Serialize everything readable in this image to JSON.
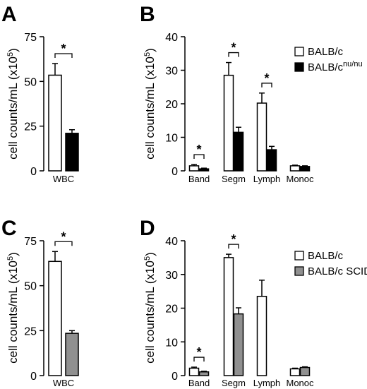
{
  "chart_data": [
    {
      "panel": "A",
      "type": "bar",
      "ylabel": "cell counts/mL (x10",
      "ylabel_sup": "5",
      "ylabel_end": ")",
      "ylim": [
        0,
        75
      ],
      "yticks": [
        "0",
        "25",
        "50",
        "75"
      ],
      "categories": [
        "WBC"
      ],
      "series": [
        {
          "values": [
            53.5
          ],
          "errors": [
            6.5
          ],
          "color": "#ffffff"
        },
        {
          "values": [
            21
          ],
          "errors": [
            2
          ],
          "color": "#000000"
        }
      ],
      "significance": [
        {
          "label": "*",
          "category": 0
        }
      ]
    },
    {
      "panel": "B",
      "type": "bar",
      "ylabel": "cell counts/mL (x10",
      "ylabel_sup": "5",
      "ylabel_end": ")",
      "ylim": [
        0,
        40
      ],
      "yticks": [
        "0",
        "10",
        "20",
        "30",
        "40"
      ],
      "categories": [
        "Band",
        "Segm",
        "Lymph",
        "Monoc"
      ],
      "series": [
        {
          "name": "BALB/c",
          "name_sup": "",
          "values": [
            1.5,
            28.5,
            20.2,
            1.5
          ],
          "errors": [
            0.4,
            3.8,
            3,
            0.2
          ],
          "color": "#ffffff"
        },
        {
          "name": "BALB/c",
          "name_sup": "nu/nu",
          "values": [
            0.6,
            11.5,
            6.3,
            1.3
          ],
          "errors": [
            0.2,
            1.5,
            1,
            0.2
          ],
          "color": "#000000"
        }
      ],
      "significance": [
        {
          "label": "*",
          "category": 0
        },
        {
          "label": "*",
          "category": 1
        },
        {
          "label": "*",
          "category": 2
        }
      ]
    },
    {
      "panel": "C",
      "type": "bar",
      "ylabel": "cell counts/mL (x10",
      "ylabel_sup": "5",
      "ylabel_end": ")",
      "ylim": [
        0,
        75
      ],
      "yticks": [
        "0",
        "25",
        "50",
        "75"
      ],
      "categories": [
        "WBC"
      ],
      "series": [
        {
          "values": [
            63.5
          ],
          "errors": [
            5.5
          ],
          "color": "#ffffff"
        },
        {
          "values": [
            23.5
          ],
          "errors": [
            1.5
          ],
          "color": "#909090"
        }
      ],
      "significance": [
        {
          "label": "*",
          "category": 0
        }
      ]
    },
    {
      "panel": "D",
      "type": "bar",
      "ylabel": "cell counts/mL (x10",
      "ylabel_sup": "5",
      "ylabel_end": ")",
      "ylim": [
        0,
        40
      ],
      "yticks": [
        "0",
        "10",
        "20",
        "30",
        "40"
      ],
      "categories": [
        "Band",
        "Segm",
        "Lymph",
        "Monoc"
      ],
      "series": [
        {
          "name": "BALB/c",
          "name_sup": "",
          "values": [
            2.2,
            35,
            23.5,
            2
          ],
          "errors": [
            0.3,
            1,
            4.8,
            0.2
          ],
          "color": "#ffffff"
        },
        {
          "name": "BALB/c SCID",
          "name_sup": "",
          "values": [
            1.1,
            18.3,
            null,
            2.4
          ],
          "errors": [
            0.2,
            1.8,
            null,
            0.2
          ],
          "color": "#909090"
        }
      ],
      "significance": [
        {
          "label": "*",
          "category": 0
        },
        {
          "label": "*",
          "category": 1
        }
      ]
    }
  ]
}
